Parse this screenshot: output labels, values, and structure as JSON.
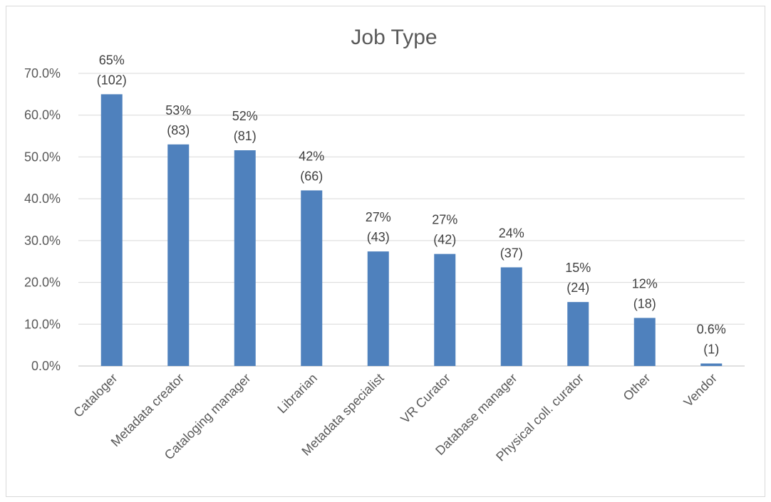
{
  "chart_data": {
    "type": "bar",
    "title": "Job Type",
    "xlabel": "",
    "ylabel": "",
    "categories": [
      "Cataloger",
      "Metadata creator",
      "Cataloging manager",
      "Librarian",
      "Metadata specialist",
      "VR Curator",
      "Database manager",
      "Physical coll. curator",
      "Other",
      "Vendor"
    ],
    "values": [
      65,
      53,
      51.6,
      42,
      27.4,
      26.8,
      23.6,
      15.3,
      11.5,
      0.6
    ],
    "data_labels": [
      [
        "65%",
        "(102)"
      ],
      [
        "53%",
        "(83)"
      ],
      [
        "52%",
        "(81)"
      ],
      [
        "42%",
        "(66)"
      ],
      [
        "27%",
        "(43)"
      ],
      [
        "27%",
        "(42)"
      ],
      [
        "24%",
        "(37)"
      ],
      [
        "15%",
        "(24)"
      ],
      [
        "12%",
        "(18)"
      ],
      [
        "0.6%",
        "(1)"
      ]
    ],
    "yticks": [
      "0.0%",
      "10.0%",
      "20.0%",
      "30.0%",
      "40.0%",
      "50.0%",
      "60.0%",
      "70.0%"
    ],
    "ylim": [
      0,
      70
    ],
    "grid": true,
    "legend": "none",
    "bar_color": "#4f81bd"
  }
}
